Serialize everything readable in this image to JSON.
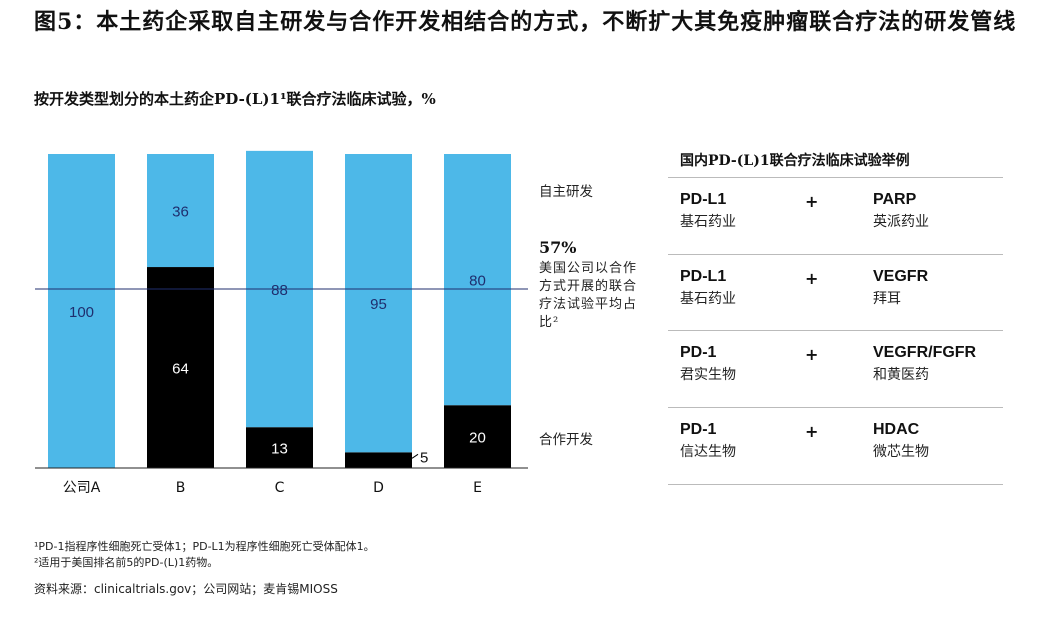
{
  "title": "图5：本土药企采取自主研发与合作开发相结合的方式，不断扩大其免疫肿瘤联合疗法的研发管线",
  "subtitle": "按开发类型划分的本土药企PD-(L)1¹联合疗法临床试验，%",
  "chart_data": {
    "type": "bar",
    "stacked": true,
    "categories": [
      "公司A",
      "B",
      "C",
      "D",
      "E"
    ],
    "series": [
      {
        "name": "合作开发",
        "values": [
          0,
          64,
          13,
          5,
          20
        ],
        "color": "#000000"
      },
      {
        "name": "自主研发",
        "values": [
          100,
          36,
          88,
          95,
          80
        ],
        "color": "#4db8e8"
      }
    ],
    "ylim": [
      0,
      100
    ],
    "reference_line": {
      "value": 57,
      "label_value": "57%",
      "label_text": "美国公司以合作方式开展的联合疗法试验平均占比²"
    },
    "grid": false
  },
  "series_labels": {
    "self": "自主研发",
    "coop": "合作开发"
  },
  "right_panel": {
    "title": "国内PD-(L)1联合疗法临床试验举例",
    "rows": [
      {
        "drug1": "PD-L1",
        "company1": "基石药业",
        "plus": "+",
        "drug2": "PARP",
        "company2": "英派药业"
      },
      {
        "drug1": "PD-L1",
        "company1": "基石药业",
        "plus": "+",
        "drug2": "VEGFR",
        "company2": "拜耳"
      },
      {
        "drug1": "PD-1",
        "company1": "君实生物",
        "plus": "+",
        "drug2": "VEGFR/FGFR",
        "company2": "和黄医药"
      },
      {
        "drug1": "PD-1",
        "company1": "信达生物",
        "plus": "+",
        "drug2": "HDAC",
        "company2": "微芯生物"
      }
    ]
  },
  "footnotes": {
    "f1": "¹PD-1指程序性细胞死亡受体1；PD-L1为程序性细胞死亡受体配体1。",
    "f2": "²适用于美国排名前5的PD-(L)1药物。",
    "source": "资料来源：clinicaltrials.gov；公司网站；麦肯锡MIOSS"
  }
}
